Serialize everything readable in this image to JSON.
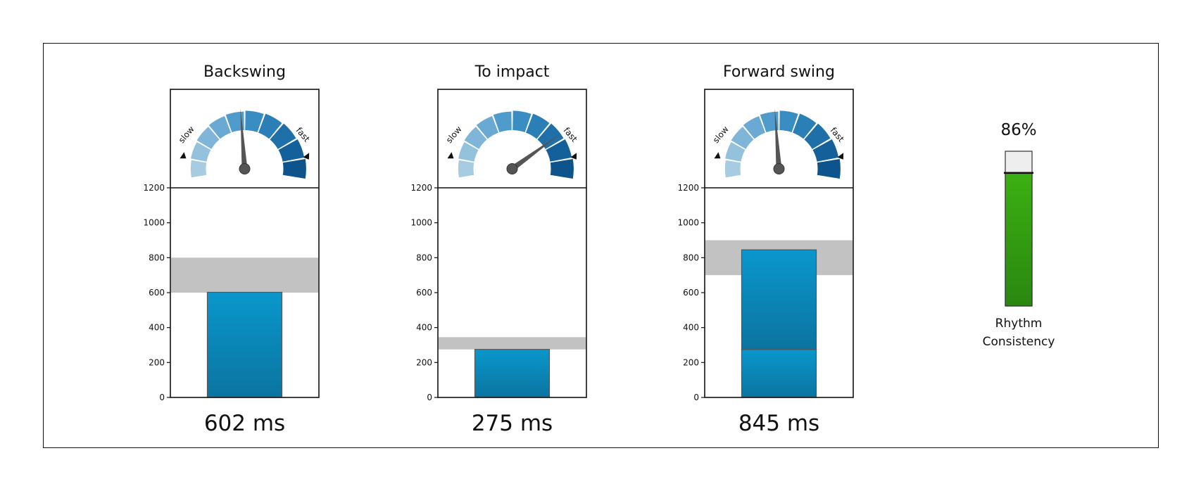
{
  "chart_data": [
    {
      "type": "bar",
      "title": "Backswing",
      "ylim": [
        0,
        1200
      ],
      "yticks": [
        0,
        200,
        400,
        600,
        800,
        1000,
        1200
      ],
      "values": [
        602
      ],
      "target_band": [
        600,
        800
      ],
      "value_label": "602 ms",
      "gauge": {
        "slow_label": "slow",
        "fast_label": "fast",
        "level": 0.48
      }
    },
    {
      "type": "bar",
      "title": "To impact",
      "ylim": [
        0,
        1200
      ],
      "yticks": [
        0,
        200,
        400,
        600,
        800,
        1000,
        1200
      ],
      "values": [
        275
      ],
      "target_band": [
        275,
        345
      ],
      "value_label": "275 ms",
      "gauge": {
        "slow_label": "slow",
        "fast_label": "fast",
        "level": 0.77
      }
    },
    {
      "type": "bar",
      "title": "Forward swing",
      "ylim": [
        0,
        1200
      ],
      "yticks": [
        0,
        200,
        400,
        600,
        800,
        1000,
        1200
      ],
      "values": [
        845
      ],
      "segments": [
        275,
        570
      ],
      "target_band": [
        700,
        900
      ],
      "value_label": "845 ms",
      "gauge": {
        "slow_label": "slow",
        "fast_label": "fast",
        "level": 0.48
      }
    },
    {
      "type": "bar",
      "title": "86%",
      "values": [
        0.86
      ],
      "ylim": [
        0,
        1
      ],
      "label_lines": [
        "Rhythm",
        "Consistency"
      ]
    }
  ],
  "colors": {
    "bar_top": "#0a97cc",
    "bar_bottom": "#0b74a0",
    "band": "#c2c2c2",
    "needle": "#555555",
    "green_top": "#3bb012",
    "green_bottom": "#2a8710",
    "gauge_segments": [
      "#a7cbe0",
      "#94c2dd",
      "#7fb5d8",
      "#6aa9d3",
      "#4f9bcb",
      "#3a8dc3",
      "#2b7fb7",
      "#1f70a8",
      "#14609a",
      "#0c548b"
    ]
  }
}
